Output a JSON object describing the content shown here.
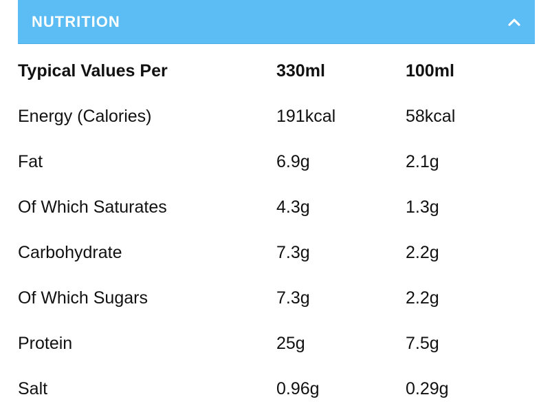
{
  "accordion": {
    "title": "NUTRITION",
    "expanded": true,
    "icon": "chevron-up-icon",
    "header_color": "#5cbcf4"
  },
  "table": {
    "headers": [
      "Typical Values Per",
      "330ml",
      "100ml"
    ],
    "rows": [
      {
        "label": "Energy (Calories)",
        "per_330ml": "191kcal",
        "per_100ml": "58kcal"
      },
      {
        "label": "Fat",
        "per_330ml": "6.9g",
        "per_100ml": "2.1g"
      },
      {
        "label": "Of Which Saturates",
        "per_330ml": "4.3g",
        "per_100ml": "1.3g"
      },
      {
        "label": "Carbohydrate",
        "per_330ml": "7.3g",
        "per_100ml": "2.2g"
      },
      {
        "label": "Of Which Sugars",
        "per_330ml": "7.3g",
        "per_100ml": "2.2g"
      },
      {
        "label": "Protein",
        "per_330ml": "25g",
        "per_100ml": "7.5g"
      },
      {
        "label": "Salt",
        "per_330ml": "0.96g",
        "per_100ml": "0.29g"
      }
    ]
  }
}
